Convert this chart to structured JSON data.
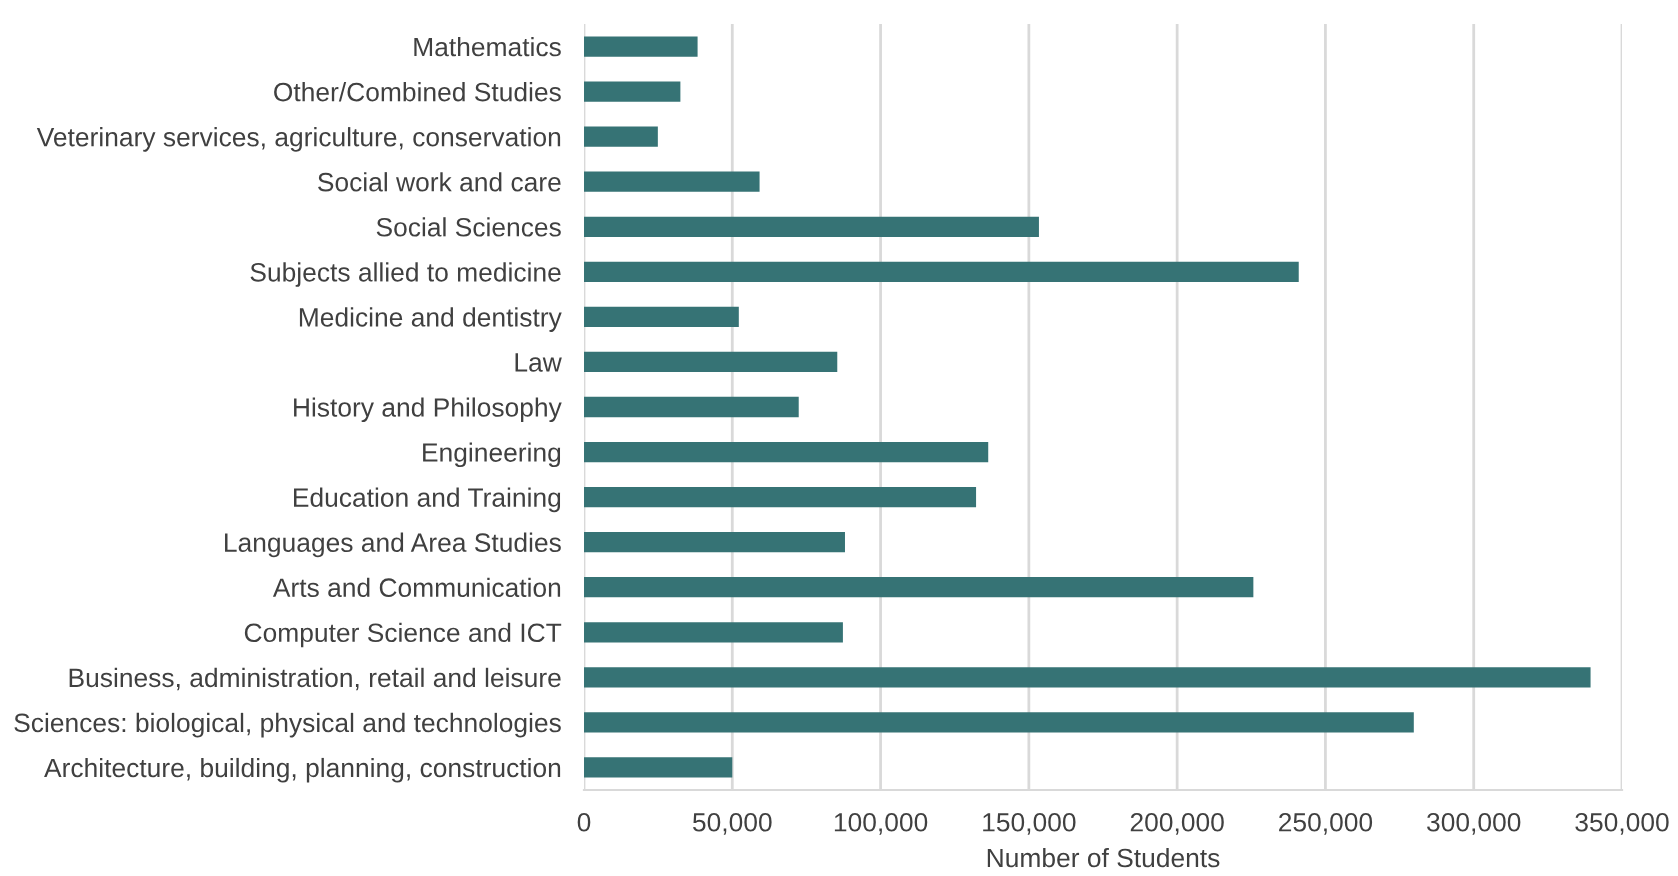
{
  "chart_data": {
    "type": "bar",
    "orientation": "horizontal",
    "xlabel": "Number of Students",
    "categories": [
      "Mathematics",
      "Other/Combined Studies",
      "Veterinary services, agriculture, conservation",
      "Social work and care",
      "Social Sciences",
      "Subjects allied to medicine",
      "Medicine and dentistry",
      "Law",
      "History and Philosophy",
      "Engineering",
      "Education and Training",
      "Languages and Area Studies",
      "Arts and Communication",
      "Computer Science and ICT",
      "Business, administration, retail and leisure",
      "Sciences: biological, physical and technologies",
      "Architecture, building, planning, construction"
    ],
    "values": [
      38300,
      32500,
      24900,
      59200,
      153400,
      241000,
      52200,
      85400,
      72400,
      136300,
      132200,
      88000,
      225700,
      87300,
      339400,
      279800,
      50000
    ],
    "color": "#367375",
    "xlim": [
      0,
      350000
    ],
    "xticks": [
      {
        "value": 0,
        "label": "0"
      },
      {
        "value": 50000,
        "label": "50,000"
      },
      {
        "value": 100000,
        "label": "100,000"
      },
      {
        "value": 150000,
        "label": "150,000"
      },
      {
        "value": 200000,
        "label": "200,000"
      },
      {
        "value": 250000,
        "label": "250,000"
      },
      {
        "value": 300000,
        "label": "300,000"
      },
      {
        "value": 350000,
        "label": "350,000"
      }
    ],
    "grid": "x"
  }
}
